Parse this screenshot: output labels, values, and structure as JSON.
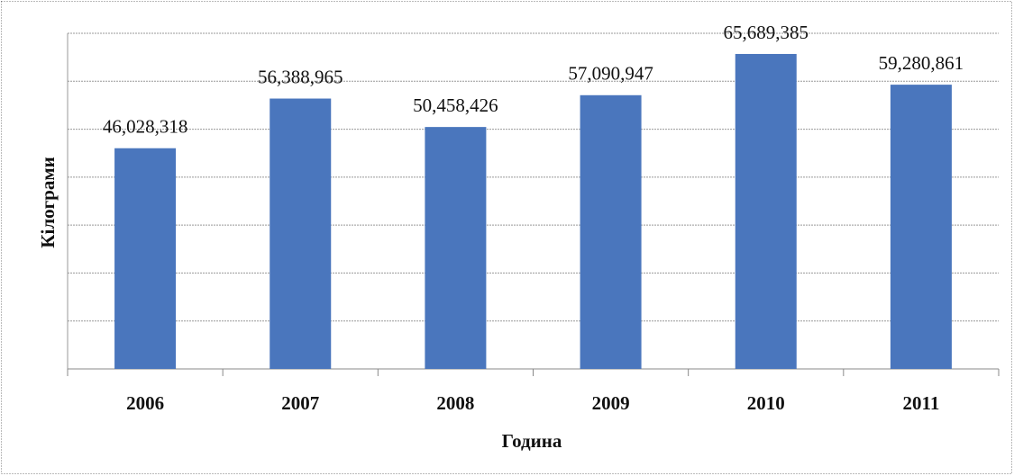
{
  "chart_data": {
    "type": "bar",
    "categories": [
      "2006",
      "2007",
      "2008",
      "2009",
      "2010",
      "2011"
    ],
    "values": [
      46028318,
      56388965,
      50458426,
      57090947,
      65689385,
      59280861
    ],
    "value_labels": [
      "46,028,318",
      "56,388,965",
      "50,458,426",
      "57,090,947",
      "65,689,385",
      "59,280,861"
    ],
    "color": "#4a76bd",
    "x_label": "Година",
    "y_label": "Кілограми",
    "ylim": [
      0,
      70000000
    ],
    "yticks": [
      0,
      10000000,
      20000000,
      30000000,
      40000000,
      50000000,
      60000000,
      70000000
    ],
    "grid": true
  }
}
